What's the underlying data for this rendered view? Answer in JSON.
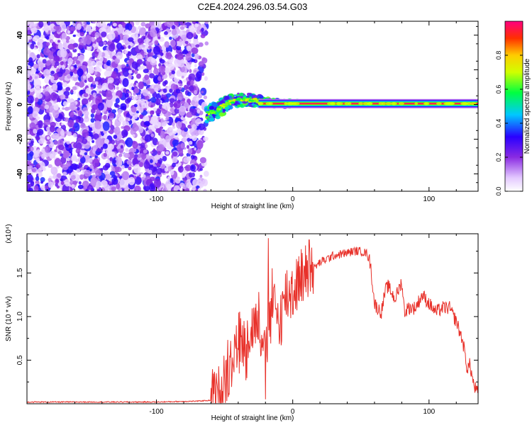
{
  "title": "C2E4.2024.296.03.54.G03",
  "colors": {
    "snr_line": "#e8312a",
    "frame": "#000000",
    "colormap": [
      "#ffffff",
      "#8a2be2",
      "#3a00ff",
      "#00c8ff",
      "#00ff40",
      "#ffff00",
      "#ff4000",
      "#ff0080"
    ]
  },
  "chart_data": [
    {
      "type": "heatmap",
      "title": "C2E4.2024.296.03.54.G03",
      "xlabel": "Height of straight line (km)",
      "ylabel": "Frequency (Hz)",
      "xlim": [
        -195,
        136
      ],
      "ylim": [
        -50,
        48
      ],
      "xticks": [
        -100,
        0,
        100
      ],
      "xtick_labels": [
        "-100",
        "0",
        "100"
      ],
      "yticks": [
        -40,
        -20,
        0,
        20,
        40
      ],
      "ytick_labels": [
        "-40",
        "-20",
        "0",
        "20",
        "40"
      ],
      "grid": false,
      "noise_region_x": [
        -195,
        -63
      ],
      "noise_region_amplitude": [
        0.05,
        0.35
      ],
      "transition_region_x": [
        -63,
        10
      ],
      "transition_track": [
        {
          "x": -63,
          "f": -5
        },
        {
          "x": -55,
          "f": -3
        },
        {
          "x": -45,
          "f": 2
        },
        {
          "x": -35,
          "f": 3
        },
        {
          "x": -25,
          "f": 2
        },
        {
          "x": -15,
          "f": 1
        },
        {
          "x": 0,
          "f": 0.5
        },
        {
          "x": 10,
          "f": 0.5
        }
      ],
      "carrier_line": {
        "x_start": -25,
        "x_end": 136,
        "frequency_hz": 0.5,
        "amplitude": 0.95
      },
      "colorbar": {
        "label": "Normalized spectral amplitude",
        "range": [
          0,
          1
        ],
        "ticks": [
          0.0,
          0.2,
          0.4,
          0.6,
          0.8
        ],
        "tick_labels": [
          "0.0",
          "0.2",
          "0.4",
          "0.6",
          "0.8"
        ]
      }
    },
    {
      "type": "line",
      "title": "",
      "xlabel": "Height of straight line (km)",
      "ylabel": "SNR (10 * v/v)",
      "scale_note": "(x10⁴)",
      "xlim": [
        -195,
        136
      ],
      "ylim": [
        0,
        1.95
      ],
      "xticks": [
        -100,
        0,
        100
      ],
      "xtick_labels": [
        "-100",
        "0",
        "100"
      ],
      "yticks": [
        0.5,
        1.0,
        1.5
      ],
      "ytick_labels": [
        "0.5",
        "1.0",
        "1.5"
      ],
      "grid": false,
      "series": [
        {
          "color": "#e8312a",
          "x": [
            -195,
            -150,
            -100,
            -70,
            -60,
            -55,
            -50,
            -45,
            -40,
            -35,
            -30,
            -25,
            -22,
            -20,
            -18,
            -15,
            -10,
            -5,
            0,
            5,
            10,
            15,
            20,
            30,
            40,
            45,
            50,
            55,
            57,
            60,
            62,
            65,
            68,
            70,
            75,
            80,
            82,
            85,
            90,
            95,
            100,
            105,
            110,
            115,
            118,
            120,
            125,
            128,
            130,
            133,
            136
          ],
          "y": [
            0.02,
            0.02,
            0.02,
            0.03,
            0.04,
            0.1,
            0.3,
            0.55,
            0.72,
            0.65,
            0.9,
            0.95,
            0.85,
            0.4,
            0.9,
            1.15,
            0.95,
            1.25,
            1.3,
            1.45,
            1.5,
            1.55,
            1.62,
            1.7,
            1.73,
            1.75,
            1.75,
            1.72,
            1.6,
            1.15,
            1.1,
            1.05,
            1.3,
            1.35,
            1.2,
            1.4,
            1.05,
            1.1,
            1.1,
            1.25,
            1.15,
            1.05,
            1.1,
            1.1,
            1.0,
            0.95,
            0.7,
            0.4,
            0.45,
            0.2,
            0.12
          ]
        }
      ],
      "spikes": [
        {
          "x": -18,
          "y": 1.9
        },
        {
          "x": 12,
          "y": 1.88
        },
        {
          "x": -20,
          "y": 0.05
        }
      ]
    }
  ]
}
